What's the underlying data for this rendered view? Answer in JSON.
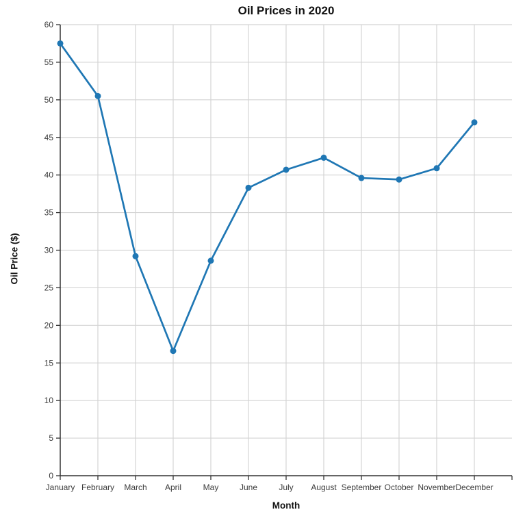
{
  "chart_data": {
    "type": "line",
    "title": "Oil Prices in 2020",
    "xlabel": "Month",
    "ylabel": "Oil Price ($)",
    "categories": [
      "January",
      "February",
      "March",
      "April",
      "May",
      "June",
      "July",
      "August",
      "September",
      "October",
      "November",
      "December"
    ],
    "series": [
      {
        "name": "Oil Price",
        "values": [
          57.5,
          50.5,
          29.2,
          16.6,
          28.6,
          38.3,
          40.7,
          42.3,
          39.6,
          39.4,
          40.9,
          47.0
        ]
      }
    ],
    "ylim": [
      0,
      60
    ],
    "yticks": [
      0,
      5,
      10,
      15,
      20,
      25,
      30,
      35,
      40,
      45,
      50,
      55,
      60
    ],
    "grid": true,
    "legend": false
  },
  "colors": {
    "line": "#1f77b4",
    "marker": "#1f77b4",
    "grid": "#d4d4d4",
    "axis": "#333333",
    "tick_label": "#3b3b3b",
    "title_text": "#111111",
    "background": "#ffffff"
  }
}
